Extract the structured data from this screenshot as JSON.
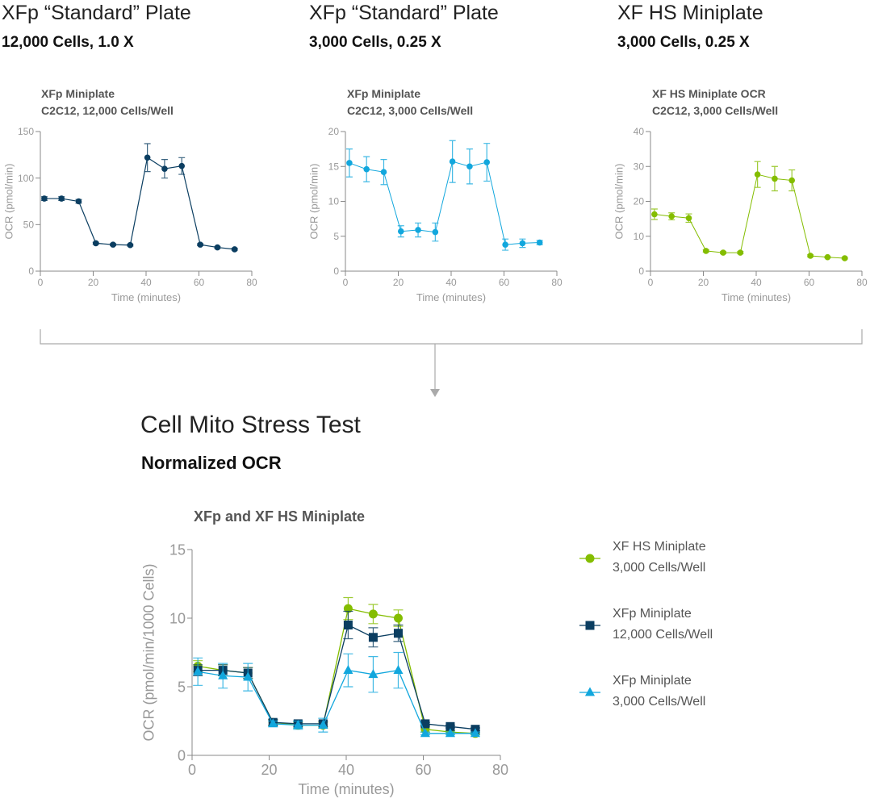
{
  "panels": [
    {
      "heading": "XFp “Standard” Plate",
      "subheading": "12,000 Cells, 1.0 X"
    },
    {
      "heading": "XFp “Standard” Plate",
      "subheading": "3,000 Cells, 0.25 X"
    },
    {
      "heading": "XF HS Miniplate",
      "subheading": "3,000 Cells, 0.25 X"
    }
  ],
  "summary": {
    "title": "Cell Mito Stress Test",
    "subtitle": "Normalized OCR"
  },
  "chart_data": [
    {
      "type": "line",
      "title": [
        "XFp Miniplate",
        "C2C12, 12,000 Cells/Well"
      ],
      "xlabel": "Time (minutes)",
      "ylabel": "OCR (pmol/min)",
      "xlim": [
        0,
        80
      ],
      "ylim": [
        0,
        150
      ],
      "xticks": [
        0,
        20,
        40,
        60,
        80
      ],
      "yticks": [
        0,
        50,
        100,
        150
      ],
      "color": "#0b3e61",
      "series": [
        {
          "name": "XFp Miniplate 12,000",
          "marker": "circle",
          "x": [
            1.5,
            8,
            14.5,
            21,
            27.5,
            34,
            40.5,
            47,
            53.5,
            60.5,
            67,
            73.5
          ],
          "values": [
            78,
            78,
            75,
            30,
            28.5,
            28,
            122,
            110,
            113,
            28.5,
            25.5,
            23.5
          ],
          "errors": [
            2,
            2,
            2,
            1,
            1,
            1,
            15,
            10,
            9,
            1,
            1,
            1
          ]
        }
      ]
    },
    {
      "type": "line",
      "title": [
        "XFp Miniplate",
        "C2C12, 3,000 Cells/Well"
      ],
      "xlabel": "Time (minutes)",
      "ylabel": "OCR (pmol/min)",
      "xlim": [
        0,
        80
      ],
      "ylim": [
        0,
        20
      ],
      "xticks": [
        0,
        20,
        40,
        60,
        80
      ],
      "yticks": [
        0,
        5,
        10,
        15,
        20
      ],
      "color": "#12a7dd",
      "series": [
        {
          "name": "XFp Miniplate 3,000",
          "marker": "circle",
          "x": [
            1.5,
            8,
            14.5,
            21,
            27.5,
            34,
            40.5,
            47,
            53.5,
            60.5,
            67,
            73.5
          ],
          "values": [
            15.5,
            14.6,
            14.2,
            5.7,
            5.9,
            5.6,
            15.7,
            15.0,
            15.6,
            3.8,
            4.0,
            4.1
          ],
          "errors": [
            2,
            1.8,
            1.8,
            0.8,
            1,
            1.3,
            3,
            2.5,
            2.7,
            0.8,
            0.6,
            0.3
          ]
        }
      ]
    },
    {
      "type": "line",
      "title": [
        "XF HS Miniplate OCR",
        "C2C12, 3,000 Cells/Well"
      ],
      "xlabel": "Time (minutes)",
      "ylabel": "OCR (pmol/min)",
      "xlim": [
        0,
        80
      ],
      "ylim": [
        0,
        40
      ],
      "xticks": [
        0,
        20,
        40,
        60,
        80
      ],
      "yticks": [
        0,
        10,
        20,
        30,
        40
      ],
      "color": "#84bd00",
      "series": [
        {
          "name": "XF HS Miniplate 3,000",
          "marker": "circle",
          "x": [
            1.5,
            8,
            14.5,
            21,
            27.5,
            34,
            40.5,
            47,
            53.5,
            60.5,
            67,
            73.5
          ],
          "values": [
            16.3,
            15.7,
            15.2,
            5.8,
            5.3,
            5.3,
            27.7,
            26.5,
            26,
            4.4,
            4.0,
            3.7
          ],
          "errors": [
            1.5,
            1,
            1.2,
            0.3,
            0.3,
            0.3,
            3.7,
            3.5,
            3,
            0.3,
            0.2,
            0.2
          ]
        }
      ]
    },
    {
      "type": "line",
      "title": [
        "XFp and XF HS Miniplate"
      ],
      "xlabel": "Time (minutes)",
      "ylabel": "OCR (pmol/min/1000 Cells)",
      "xlim": [
        0,
        80
      ],
      "ylim": [
        0,
        15
      ],
      "xticks": [
        0,
        20,
        40,
        60,
        80
      ],
      "yticks": [
        0,
        5,
        10,
        15
      ],
      "legend": "right",
      "series": [
        {
          "name": [
            "XF HS Miniplate",
            "3,000 Cells/Well"
          ],
          "color": "#84bd00",
          "marker": "circle",
          "x": [
            1.5,
            8,
            14.5,
            21,
            27.5,
            34,
            40.5,
            47,
            53.5,
            60.5,
            67,
            73.5
          ],
          "values": [
            6.5,
            6.2,
            6.0,
            2.4,
            2.2,
            2.2,
            10.7,
            10.3,
            10.0,
            1.9,
            1.7,
            1.6
          ],
          "errors": [
            0.4,
            0.4,
            0.4,
            0.2,
            0.2,
            0.2,
            0.8,
            0.7,
            0.6,
            0.2,
            0.1,
            0.1
          ]
        },
        {
          "name": [
            "XFp Miniplate",
            "12,000 Cells/Well"
          ],
          "color": "#0b3e61",
          "marker": "square",
          "x": [
            1.5,
            8,
            14.5,
            21,
            27.5,
            34,
            40.5,
            47,
            53.5,
            60.5,
            67,
            73.5
          ],
          "values": [
            6.2,
            6.2,
            6.0,
            2.4,
            2.3,
            2.3,
            9.5,
            8.6,
            8.9,
            2.3,
            2.1,
            1.9
          ],
          "errors": [
            0.4,
            0.4,
            0.4,
            0.2,
            0.2,
            0.2,
            1,
            0.7,
            0.6,
            0.1,
            0.1,
            0.1
          ]
        },
        {
          "name": [
            "XFp Miniplate",
            "3,000 Cells/Well"
          ],
          "color": "#12a7dd",
          "marker": "triangle",
          "x": [
            1.5,
            8,
            14.5,
            21,
            27.5,
            34,
            40.5,
            47,
            53.5,
            60.5,
            67,
            73.5
          ],
          "values": [
            6.1,
            5.8,
            5.7,
            2.3,
            2.2,
            2.2,
            6.2,
            5.9,
            6.2,
            1.6,
            1.6,
            1.6
          ],
          "errors": [
            1,
            0.9,
            1,
            0.2,
            0.3,
            0.5,
            1.2,
            1.3,
            1.3,
            0.1,
            0.1,
            0.1
          ]
        }
      ]
    }
  ]
}
